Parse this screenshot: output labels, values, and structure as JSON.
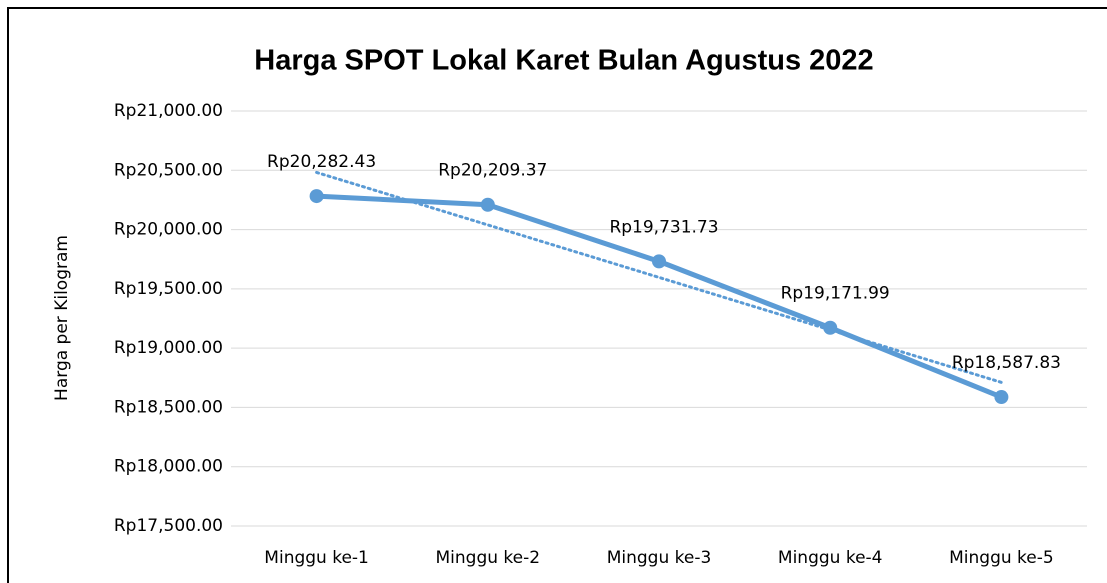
{
  "chart_data": {
    "type": "line",
    "title": "Harga SPOT Lokal Karet Bulan Agustus 2022",
    "y_label": "Harga per Kilogram",
    "categories": [
      "Minggu ke-1",
      "Minggu ke-2",
      "Minggu ke-3",
      "Minggu ke-4",
      "Minggu ke-5"
    ],
    "series": [
      {
        "color": "#5b9bd5",
        "values": [
          20282.43,
          20209.37,
          19731.73,
          19171.99,
          18587.83
        ],
        "value_labels": [
          "Rp20,282.43",
          "Rp20,209.37",
          "Rp19,731.73",
          "Rp19,171.99",
          "Rp18,587.83"
        ]
      }
    ],
    "trendline": "linear",
    "ylim": [
      17500,
      21000
    ],
    "yticks": [
      {
        "value": 17500,
        "label": "Rp17,500.00"
      },
      {
        "value": 18000,
        "label": "Rp18,000.00"
      },
      {
        "value": 18500,
        "label": "Rp18,500.00"
      },
      {
        "value": 19000,
        "label": "Rp19,000.00"
      },
      {
        "value": 19500,
        "label": "Rp19,500.00"
      },
      {
        "value": 20000,
        "label": "Rp20,000.00"
      },
      {
        "value": 20500,
        "label": "Rp20,500.00"
      },
      {
        "value": 21000,
        "label": "Rp21,000.00"
      }
    ],
    "grid": true
  }
}
